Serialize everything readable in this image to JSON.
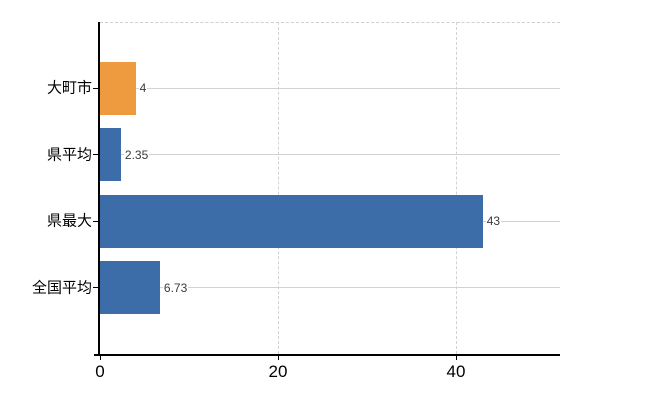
{
  "chart_data": {
    "type": "bar",
    "orientation": "horizontal",
    "title": "",
    "categories": [
      "大町市",
      "県平均",
      "県最大",
      "全国平均"
    ],
    "values": [
      4,
      2.35,
      43,
      6.73
    ],
    "value_labels": [
      "4",
      "2.35",
      "43",
      "6.73"
    ],
    "bar_colors": [
      "#ee9a3e",
      "#3d6da8",
      "#3d6da8",
      "#3d6da8"
    ],
    "x_ticks": [
      0,
      20,
      40
    ],
    "x_tick_labels": [
      "0",
      "20",
      "40"
    ],
    "xlim": [
      0,
      51.7
    ],
    "xlabel": "",
    "ylabel": "",
    "legend": "none",
    "grid": {
      "vertical": "dashed at x ticks",
      "horizontal": "solid line at each category center",
      "top_border": "dashed"
    }
  },
  "colors": {
    "highlight_bar": "#ee9a3e",
    "default_bar": "#3d6da8",
    "gridline": "#cfd4cf",
    "dashed_gridline": "#d2d2d2",
    "axis": "#000000",
    "value_text": "#3a3a3a",
    "background": "#ffffff"
  }
}
